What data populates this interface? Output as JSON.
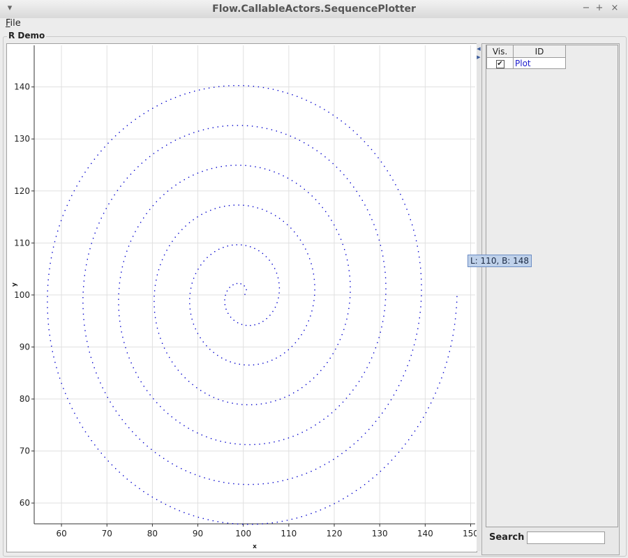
{
  "window": {
    "title": "Flow.CallableActors.SequencePlotter"
  },
  "controls": {
    "minimize": "▾",
    "restore": "−",
    "maximize": "+",
    "close": "×"
  },
  "menu": {
    "file_first": "F",
    "file_rest": "ile"
  },
  "panel": {
    "title": "R Demo"
  },
  "table": {
    "headers": [
      "Vis.",
      "ID"
    ],
    "rows": [
      {
        "visible_mark": "✔",
        "id": "Plot"
      }
    ]
  },
  "search": {
    "label": "Search",
    "value": ""
  },
  "tooltip": {
    "text": "L: 110, B: 148"
  },
  "colors": {
    "series": "#0000cc",
    "grid": "#e0e0e0"
  },
  "chart_data": {
    "type": "scatter",
    "xlabel": "x",
    "ylabel": "y",
    "xlim": [
      54,
      151
    ],
    "ylim": [
      56,
      148
    ],
    "xticks": [
      60,
      70,
      80,
      90,
      100,
      110,
      120,
      130,
      140,
      150
    ],
    "yticks": [
      60,
      70,
      80,
      90,
      100,
      110,
      120,
      130,
      140
    ],
    "grid": true,
    "series": [
      {
        "shape": "spiral",
        "center": [
          100,
          99
        ],
        "start": [
          100,
          100
        ],
        "end": [
          147,
          100
        ],
        "turns": 6,
        "description_range_x": [
          54,
          148
        ],
        "description_range_y": [
          57,
          148
        ]
      }
    ]
  }
}
